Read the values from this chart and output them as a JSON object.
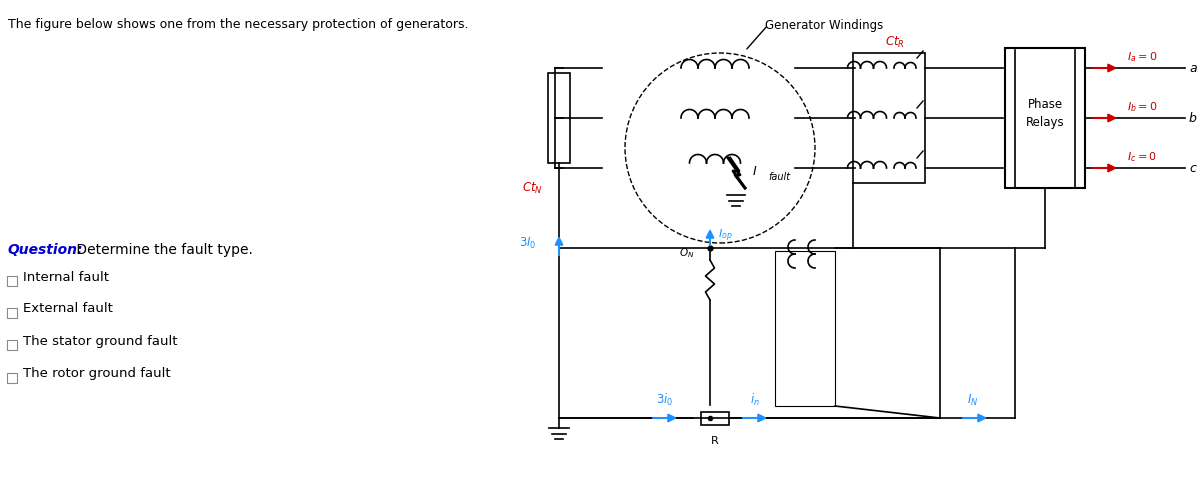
{
  "title_text": "The figure below shows one from the necessary protection of generators.",
  "question_text": "Question:",
  "question_detail": " Determine the fault type.",
  "options": [
    "Internal fault",
    "External fault",
    "The stator ground fault",
    "The rotor ground fault"
  ],
  "generator_windings_label": "Generator Windings",
  "ct_r_label": "Ct_R",
  "ct_n_label": "Ct_N",
  "i_a_label": "I_a = 0",
  "i_b_label": "I_b = 0",
  "i_c_label": "I_c = 0",
  "phase_relays_label": "Phase\nRelays",
  "i_fault_label": "I",
  "i_fault_sub": "fault",
  "label_3I0": "3I_0",
  "label_3i0": "3i_0",
  "label_iop": "I_op",
  "label_in": "i_n",
  "label_IN": "I_N",
  "label_ON": "O_N",
  "label_R": "R",
  "label_a": "a",
  "label_b": "b",
  "label_c": "c",
  "bg_color": "#ffffff",
  "line_color": "#000000",
  "blue_color": "#1E90FF",
  "red_color": "#CC0000",
  "blue_dark": "#1565C0"
}
